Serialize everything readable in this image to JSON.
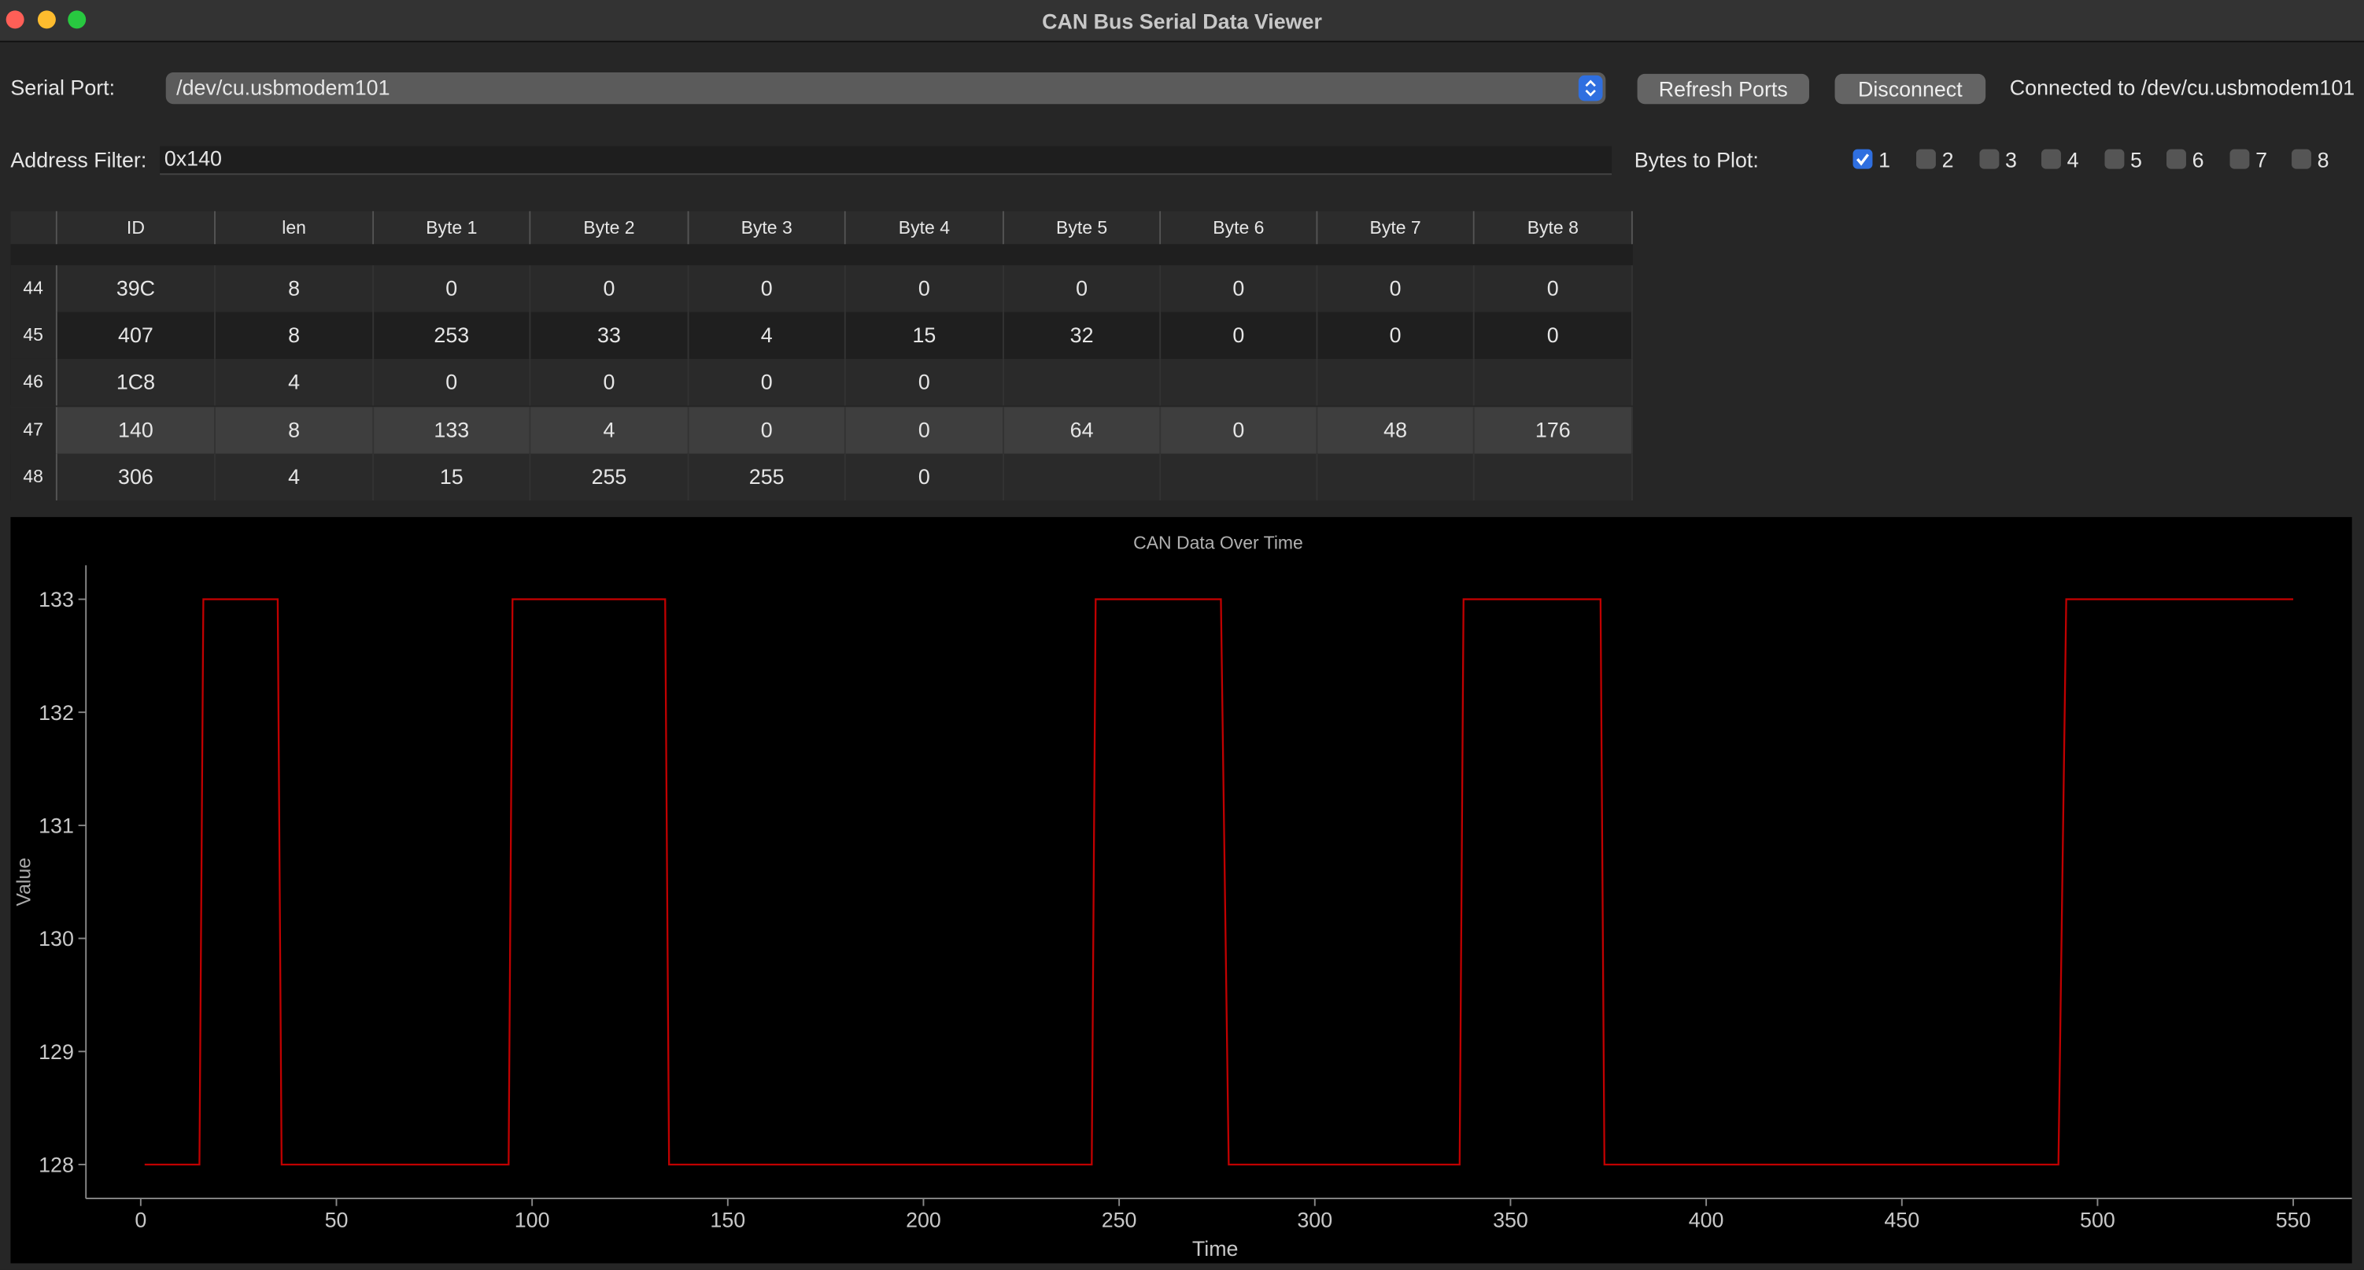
{
  "window": {
    "title": "CAN Bus Serial Data Viewer"
  },
  "controls": {
    "serial_port_label": "Serial Port:",
    "serial_port_value": "/dev/cu.usbmodem101",
    "refresh_button": "Refresh Ports",
    "disconnect_button": "Disconnect",
    "status": "Connected to /dev/cu.usbmodem101",
    "address_filter_label": "Address Filter:",
    "address_filter_value": "0x140",
    "bytes_to_plot_label": "Bytes to Plot:",
    "checkboxes": [
      {
        "label": "1",
        "checked": true
      },
      {
        "label": "2",
        "checked": false
      },
      {
        "label": "3",
        "checked": false
      },
      {
        "label": "4",
        "checked": false
      },
      {
        "label": "5",
        "checked": false
      },
      {
        "label": "6",
        "checked": false
      },
      {
        "label": "7",
        "checked": false
      },
      {
        "label": "8",
        "checked": false
      }
    ]
  },
  "table": {
    "headers": [
      "ID",
      "len",
      "Byte 1",
      "Byte 2",
      "Byte 3",
      "Byte 4",
      "Byte 5",
      "Byte 6",
      "Byte 7",
      "Byte 8"
    ],
    "rows": [
      {
        "row": 44,
        "selected": false,
        "cells": [
          "39C",
          8,
          0,
          0,
          0,
          0,
          0,
          0,
          0,
          0
        ]
      },
      {
        "row": 45,
        "selected": false,
        "cells": [
          "407",
          8,
          253,
          33,
          4,
          15,
          32,
          0,
          0,
          0
        ]
      },
      {
        "row": 46,
        "selected": false,
        "cells": [
          "1C8",
          4,
          0,
          0,
          0,
          0,
          null,
          null,
          null,
          null
        ]
      },
      {
        "row": 47,
        "selected": true,
        "cells": [
          "140",
          8,
          133,
          4,
          0,
          0,
          64,
          0,
          48,
          176
        ]
      },
      {
        "row": 48,
        "selected": false,
        "cells": [
          "306",
          4,
          15,
          255,
          255,
          0,
          null,
          null,
          null,
          null
        ]
      }
    ]
  },
  "chart_data": {
    "type": "line",
    "title": "CAN Data Over Time",
    "x_label": "Time",
    "y_label": "Value",
    "color": "#c00000",
    "x": [
      1,
      15,
      16,
      35,
      36,
      94,
      95,
      134,
      135,
      243,
      244,
      276,
      278,
      337,
      338,
      373,
      374,
      490,
      492,
      550
    ],
    "values": [
      128,
      128,
      133,
      133,
      128,
      128,
      133,
      133,
      128,
      128,
      133,
      133,
      128,
      128,
      133,
      133,
      128,
      128,
      133,
      133
    ],
    "xlim": [
      -14,
      565
    ],
    "ylim": [
      127.7,
      133.3
    ],
    "xticks": [
      0,
      50,
      100,
      150,
      200,
      250,
      300,
      350,
      400,
      450,
      500,
      550
    ],
    "yticks": [
      128,
      129,
      130,
      131,
      132,
      133
    ],
    "grid": false
  }
}
